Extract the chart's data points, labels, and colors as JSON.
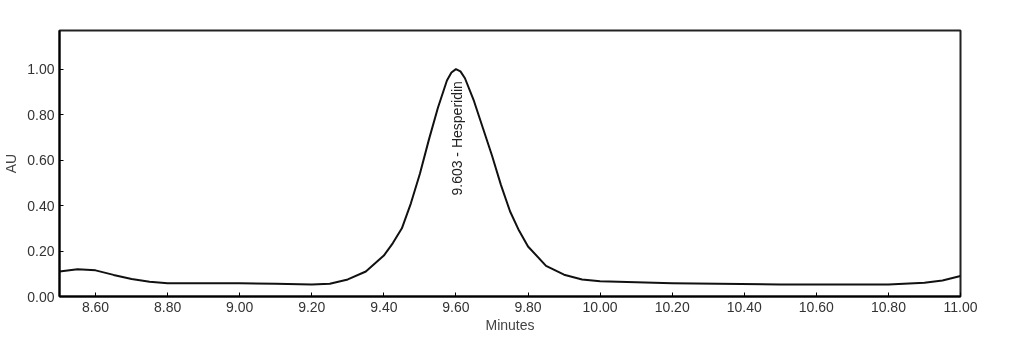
{
  "chart_data": {
    "type": "line",
    "xlabel": "Minutes",
    "ylabel": "AU",
    "x": [
      8.5,
      8.55,
      8.6,
      8.65,
      8.7,
      8.75,
      8.8,
      8.9,
      9.0,
      9.1,
      9.2,
      9.25,
      9.3,
      9.35,
      9.4,
      9.425,
      9.45,
      9.475,
      9.5,
      9.525,
      9.55,
      9.575,
      9.5875,
      9.6,
      9.6125,
      9.625,
      9.65,
      9.675,
      9.7,
      9.725,
      9.75,
      9.775,
      9.8,
      9.85,
      9.9,
      9.95,
      10.0,
      10.2,
      10.5,
      10.8,
      10.9,
      10.95,
      11.0
    ],
    "series": [
      {
        "color": "#111111",
        "values": [
          0.11,
          0.12,
          0.115,
          0.095,
          0.077,
          0.065,
          0.058,
          0.058,
          0.058,
          0.056,
          0.053,
          0.056,
          0.075,
          0.11,
          0.18,
          0.235,
          0.3,
          0.41,
          0.54,
          0.69,
          0.83,
          0.95,
          0.985,
          1.0,
          0.99,
          0.96,
          0.86,
          0.74,
          0.62,
          0.49,
          0.375,
          0.29,
          0.22,
          0.135,
          0.096,
          0.075,
          0.067,
          0.058,
          0.053,
          0.053,
          0.06,
          0.07,
          0.09
        ]
      }
    ],
    "xlim": [
      8.5,
      11.0
    ],
    "ylim": [
      0,
      1.17
    ],
    "xticks": [
      {
        "value": 8.6,
        "label": "8.60"
      },
      {
        "value": 8.8,
        "label": "8.80"
      },
      {
        "value": 9.0,
        "label": "9.00"
      },
      {
        "value": 9.2,
        "label": "9.20"
      },
      {
        "value": 9.4,
        "label": "9.40"
      },
      {
        "value": 9.6,
        "label": "9.60"
      },
      {
        "value": 9.8,
        "label": "9.80"
      },
      {
        "value": 10.0,
        "label": "10.00"
      },
      {
        "value": 10.2,
        "label": "10.20"
      },
      {
        "value": 10.4,
        "label": "10.40"
      },
      {
        "value": 10.6,
        "label": "10.60"
      },
      {
        "value": 10.8,
        "label": "10.80"
      },
      {
        "value": 11.0,
        "label": "11.00"
      }
    ],
    "yticks": [
      {
        "value": 0,
        "label": "0.00"
      },
      {
        "value": 0.2,
        "label": "0.20"
      },
      {
        "value": 0.4,
        "label": "0.40"
      },
      {
        "value": 0.6,
        "label": "0.60"
      },
      {
        "value": 0.8,
        "label": "0.80"
      },
      {
        "value": 1.0,
        "label": "1.00"
      }
    ],
    "annotations": [
      {
        "text": "9.603 - Hesperidin",
        "x": 9.603,
        "y": 1.0
      }
    ],
    "grid": false,
    "marker": "none",
    "line_style": "solid"
  }
}
